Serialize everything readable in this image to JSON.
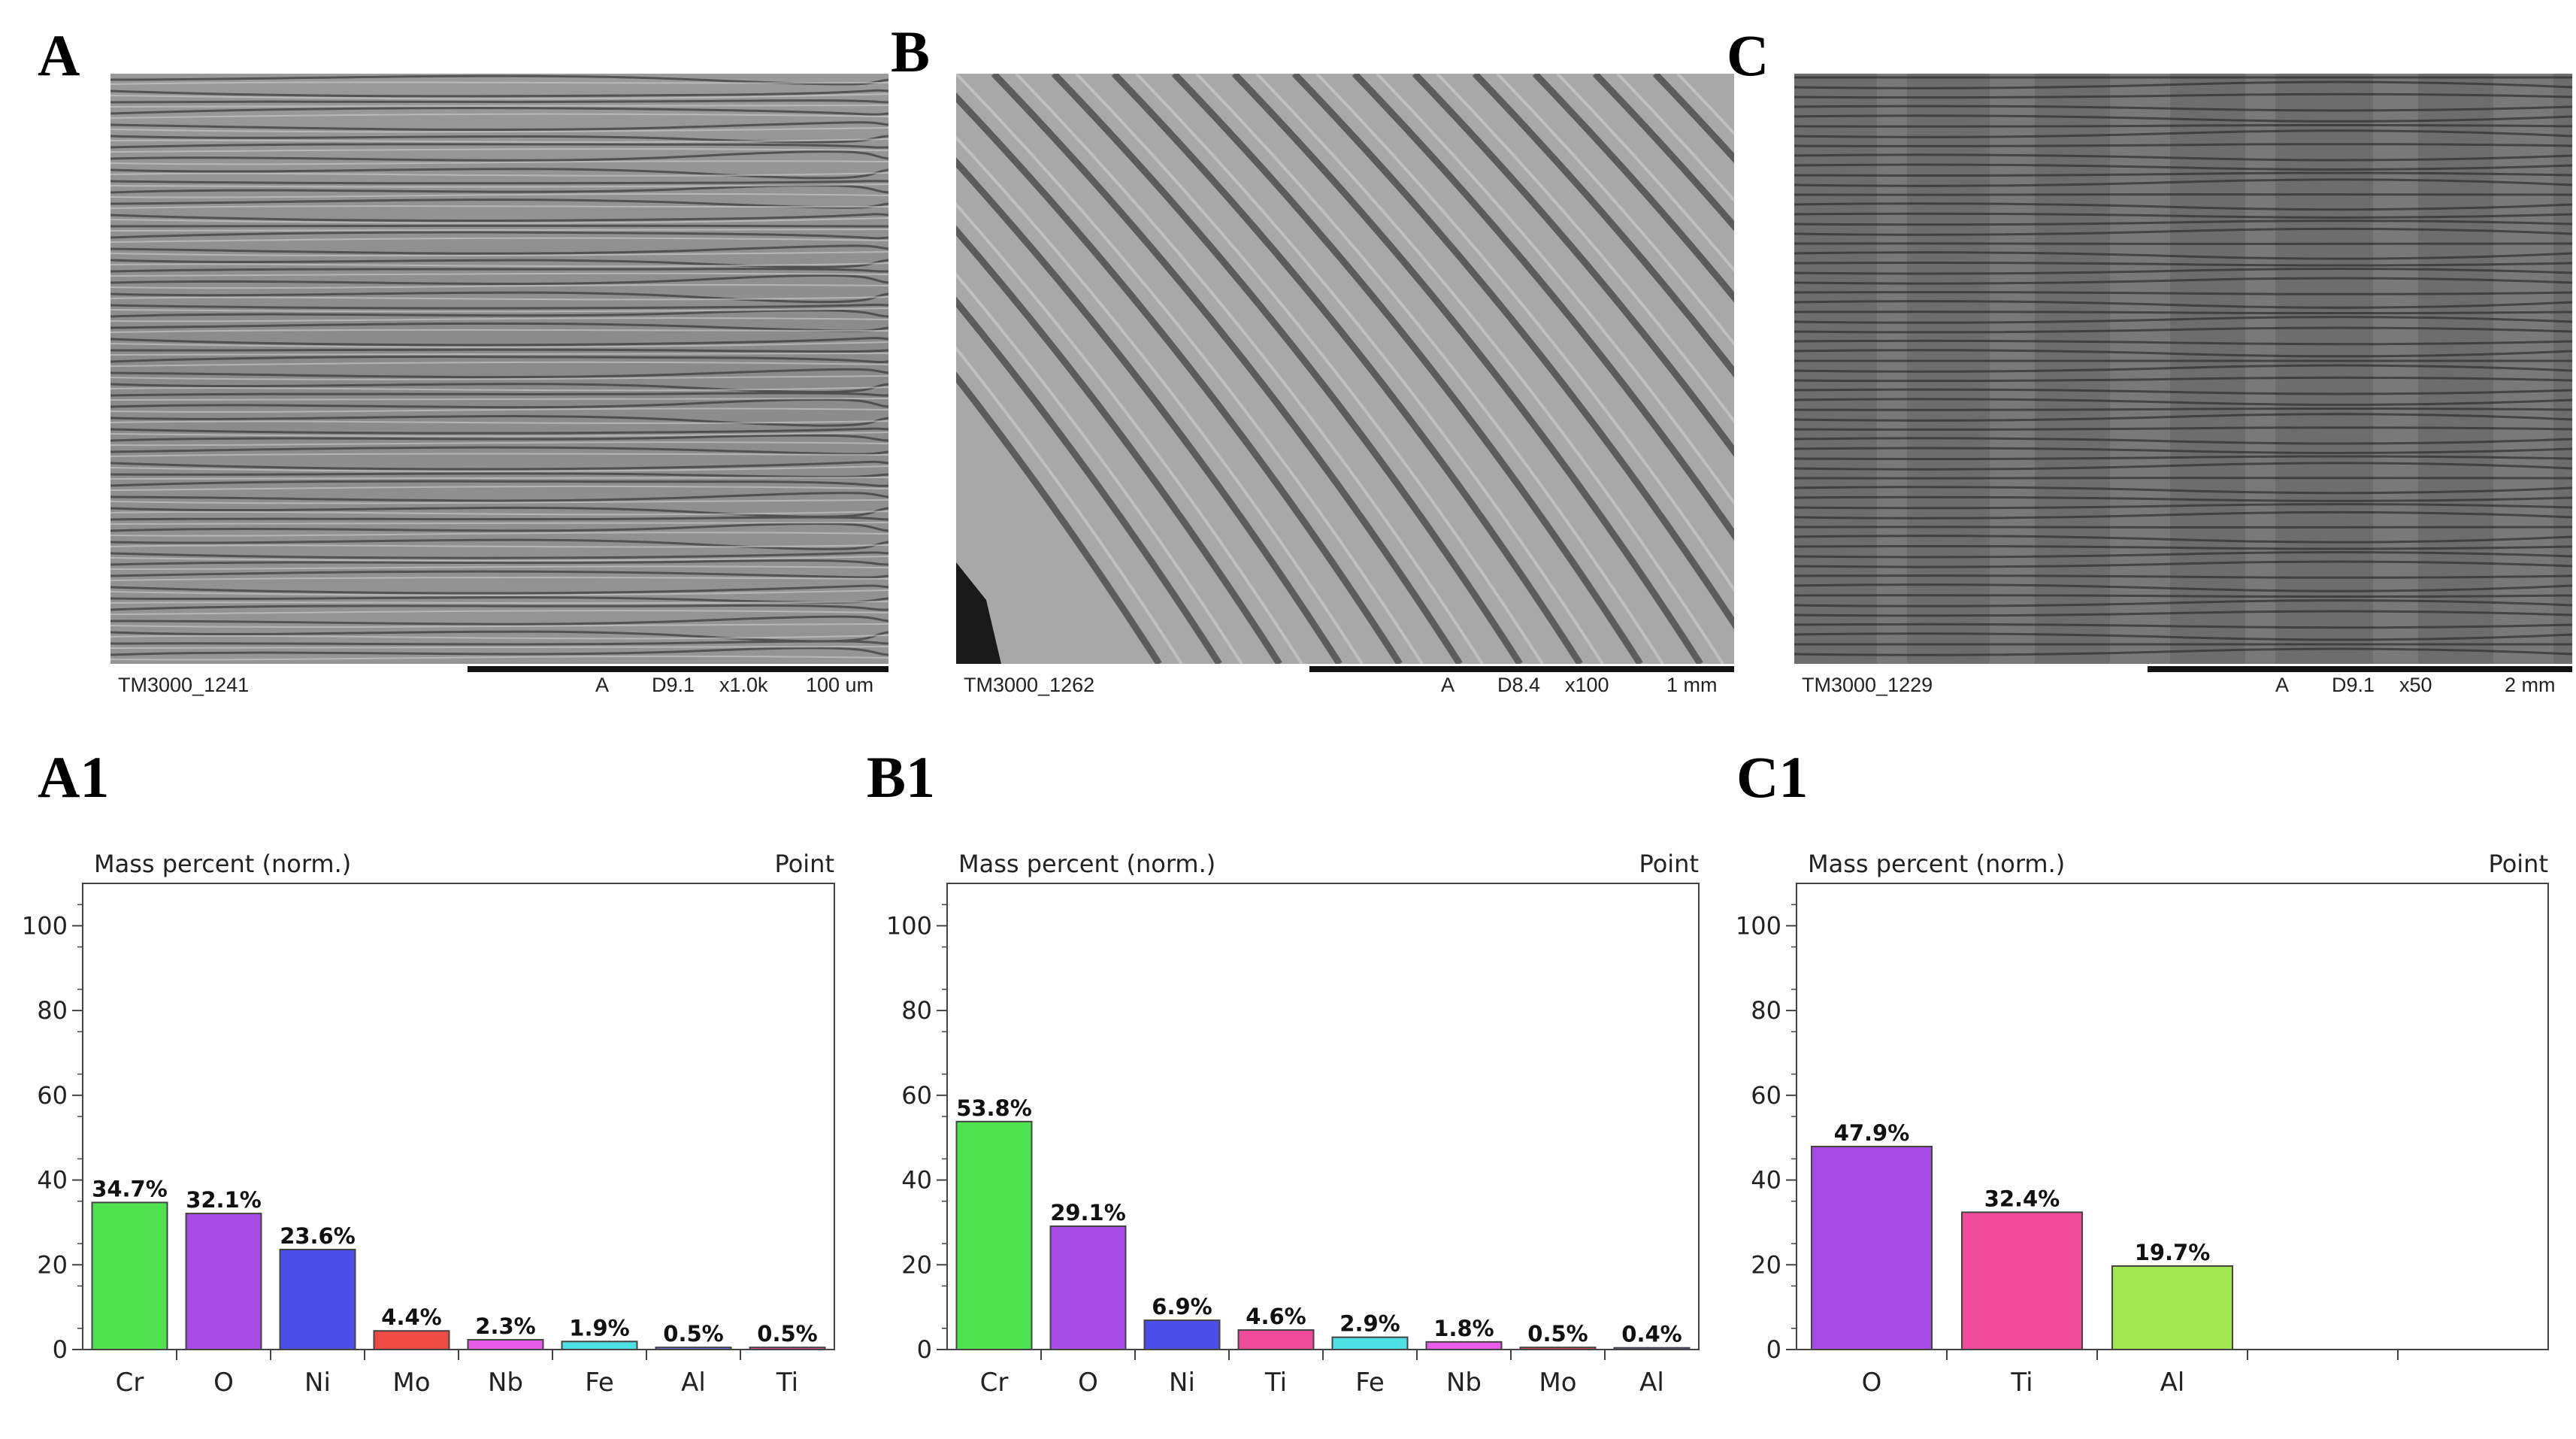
{
  "panels": {
    "A": "A",
    "B": "B",
    "C": "C",
    "A1": "A1",
    "B1": "B1",
    "C1": "C1"
  },
  "micrographs": [
    {
      "id": "TM3000_1241",
      "detector": "A",
      "wd": "D9.1",
      "mag": "x1.0k",
      "scale": "100 um"
    },
    {
      "id": "TM3000_1262",
      "detector": "A",
      "wd": "D8.4",
      "mag": "x100",
      "scale": "1 mm"
    },
    {
      "id": "TM3000_1229",
      "detector": "A",
      "wd": "D9.1",
      "mag": "x50",
      "scale": "2 mm"
    }
  ],
  "chart_data": [
    {
      "type": "bar",
      "ylabel": "Mass percent (norm.)",
      "corner_label": "Point",
      "ylim": [
        0,
        110
      ],
      "yticks": [
        0,
        20,
        40,
        60,
        80,
        100
      ],
      "categories": [
        "Cr",
        "O",
        "Ni",
        "Mo",
        "Nb",
        "Fe",
        "Al",
        "Ti"
      ],
      "values": [
        34.7,
        32.1,
        23.6,
        4.4,
        2.3,
        1.9,
        0.5,
        0.5
      ],
      "labels": [
        "34.7%",
        "32.1%",
        "23.6%",
        "4.4%",
        "2.3%",
        "1.9%",
        "0.5%",
        "0.5%"
      ],
      "colors": [
        "#4fe34f",
        "#a64be6",
        "#4b4ee8",
        "#ef4b45",
        "#e85ae8",
        "#4fe0e6",
        "#7070ff",
        "#ef4b9a"
      ],
      "empty_slots": 0
    },
    {
      "type": "bar",
      "ylabel": "Mass percent (norm.)",
      "corner_label": "Point",
      "ylim": [
        0,
        110
      ],
      "yticks": [
        0,
        20,
        40,
        60,
        80,
        100
      ],
      "categories": [
        "Cr",
        "O",
        "Ni",
        "Ti",
        "Fe",
        "Nb",
        "Mo",
        "Al"
      ],
      "values": [
        53.8,
        29.1,
        6.9,
        4.6,
        2.9,
        1.8,
        0.5,
        0.4
      ],
      "labels": [
        "53.8%",
        "29.1%",
        "6.9%",
        "4.6%",
        "2.9%",
        "1.8%",
        "0.5%",
        "0.4%"
      ],
      "colors": [
        "#4fe34f",
        "#a64be6",
        "#4b4ee8",
        "#ef4b9a",
        "#4fe0e6",
        "#e85ae8",
        "#ef4b45",
        "#7070ff"
      ],
      "empty_slots": 0
    },
    {
      "type": "bar",
      "ylabel": "Mass percent (norm.)",
      "corner_label": "Point",
      "ylim": [
        0,
        110
      ],
      "yticks": [
        0,
        20,
        40,
        60,
        80,
        100
      ],
      "categories": [
        "O",
        "Ti",
        "Al"
      ],
      "values": [
        47.9,
        32.4,
        19.7
      ],
      "labels": [
        "47.9%",
        "32.4%",
        "19.7%"
      ],
      "colors": [
        "#a64be6",
        "#ef4b9a",
        "#a3e84f"
      ],
      "empty_slots": 2
    }
  ]
}
